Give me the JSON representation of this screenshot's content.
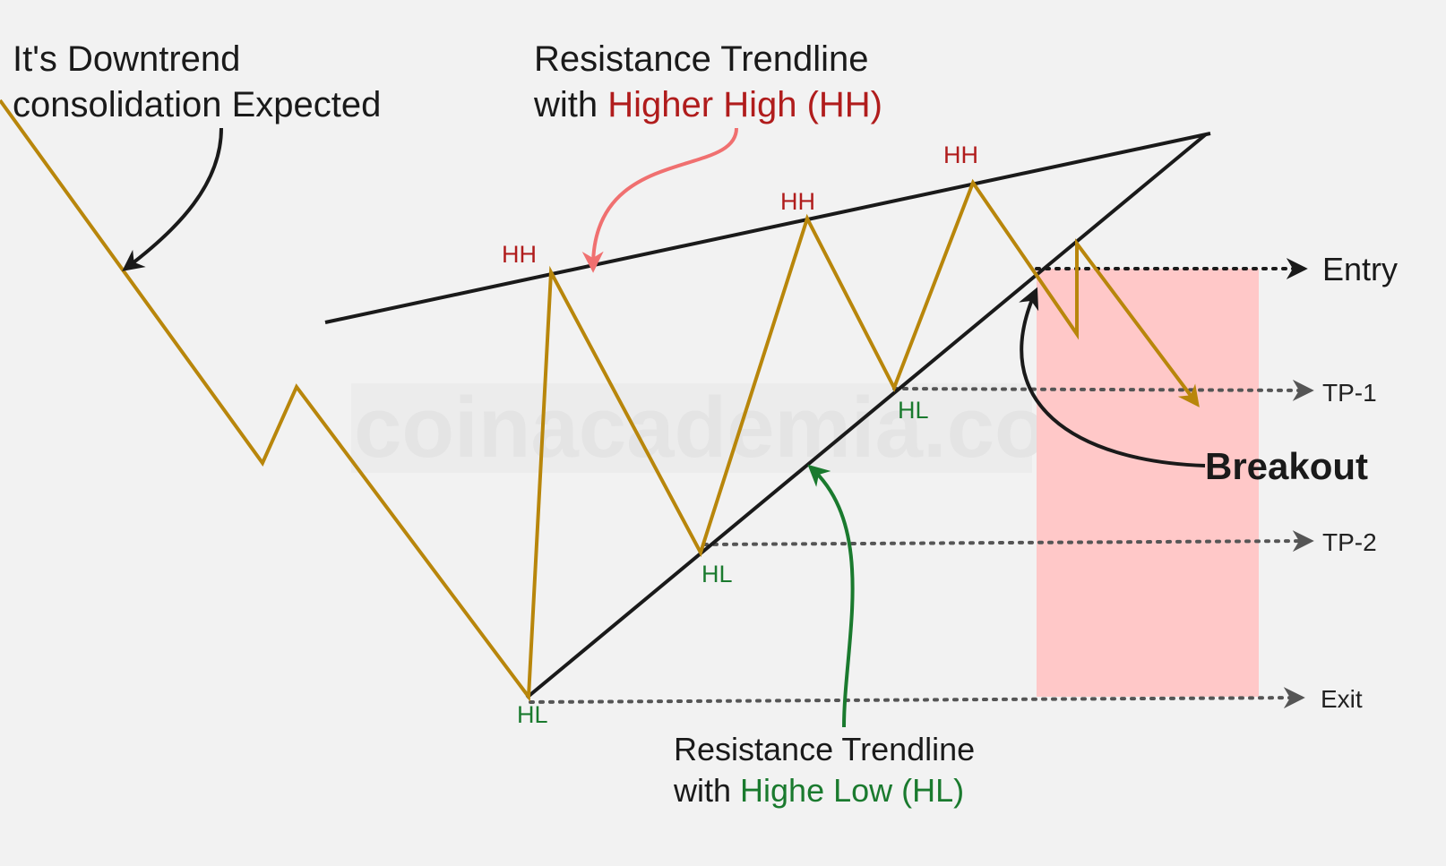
{
  "colors": {
    "background": "#f2f2f2",
    "price_line": "#b8860b",
    "trendline": "#1a1a1a",
    "higher_high": "#b01c1c",
    "higher_low": "#1a7a2e",
    "red_arrow": "#f07070",
    "green_arrow": "#1a7a2e",
    "target_zone": "#ffc8c8",
    "guide_line": "#555555",
    "watermark": "#e6e6e6"
  },
  "watermark": "coinacademia.com",
  "annotations": {
    "downtrend_line1": "It's Downtrend",
    "downtrend_line2": "consolidation Expected",
    "resistance_top_line1": "Resistance Trendline",
    "resistance_top_line2_prefix": "with ",
    "resistance_top_line2_highlight": "Higher High (HH)",
    "resistance_bottom_line1": "Resistance Trendline",
    "resistance_bottom_line2_prefix": "with ",
    "resistance_bottom_line2_highlight": "Highe Low (HL)",
    "breakout": "Breakout"
  },
  "points": {
    "hh1": "HH",
    "hh2": "HH",
    "hh3": "HH",
    "hl1": "HL",
    "hl2": "HL",
    "hl3": "HL"
  },
  "levels": {
    "entry": "Entry",
    "tp1": "TP-1",
    "tp2": "TP-2",
    "exit": "Exit"
  }
}
